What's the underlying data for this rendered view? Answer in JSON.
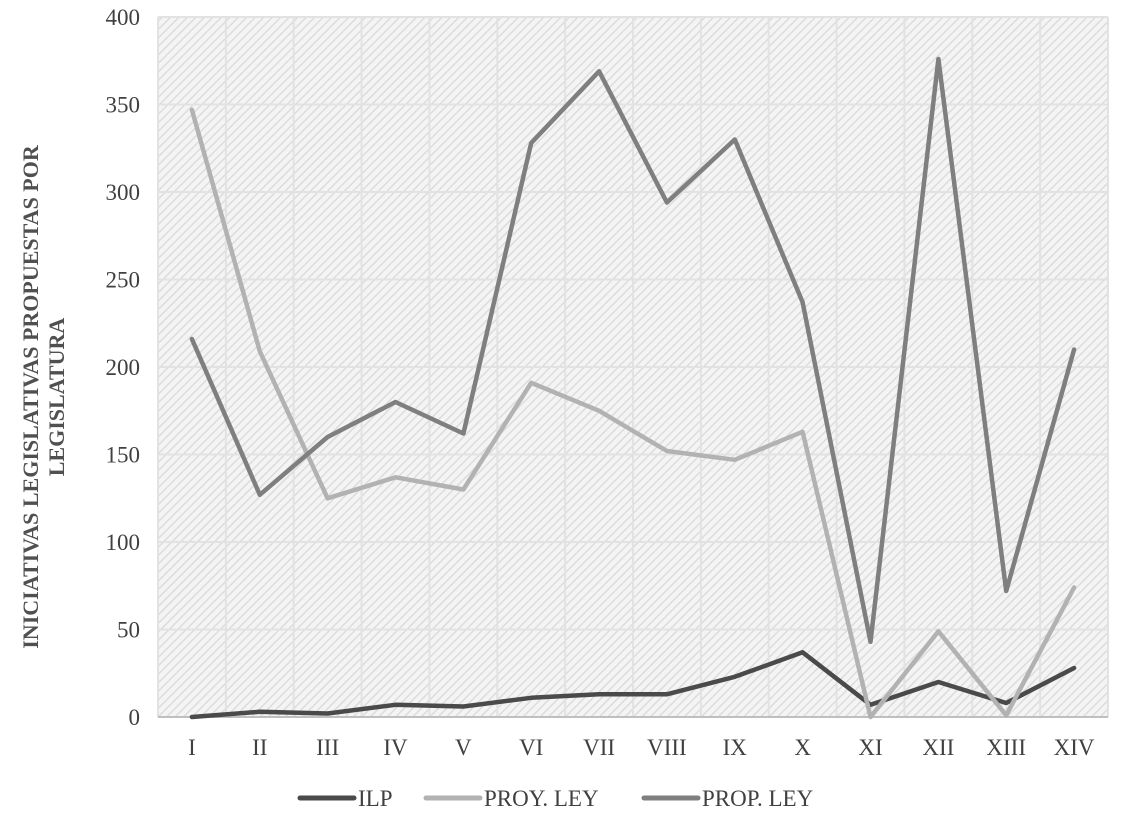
{
  "chart_data": {
    "type": "line",
    "title": "",
    "xlabel": "",
    "ylabel_lines": [
      "INICIATIVAS LEGISLATIVAS PROPUESTAS POR",
      "LEGISLATURA"
    ],
    "categories": [
      "I",
      "II",
      "III",
      "IV",
      "V",
      "VI",
      "VII",
      "VIII",
      "IX",
      "X",
      "XI",
      "XII",
      "XIII",
      "XIV"
    ],
    "ylim": [
      0,
      400
    ],
    "yticks": [
      "0",
      "50",
      "100",
      "150",
      "200",
      "250",
      "300",
      "350",
      "400"
    ],
    "grid": true,
    "legend_position": "bottom",
    "series": [
      {
        "name": "ILP",
        "color": "#4a4a4a",
        "values": [
          0,
          3,
          2,
          7,
          6,
          11,
          13,
          13,
          23,
          37,
          7,
          20,
          8,
          28
        ]
      },
      {
        "name": "PROY. LEY",
        "color": "#b2b2b2",
        "values": [
          347,
          209,
          125,
          137,
          130,
          191,
          175,
          152,
          147,
          163,
          0,
          49,
          1,
          74
        ]
      },
      {
        "name": "PROP. LEY",
        "color": "#7f7f7f",
        "values": [
          216,
          127,
          160,
          180,
          162,
          328,
          369,
          294,
          330,
          237,
          43,
          376,
          72,
          210
        ]
      }
    ]
  }
}
